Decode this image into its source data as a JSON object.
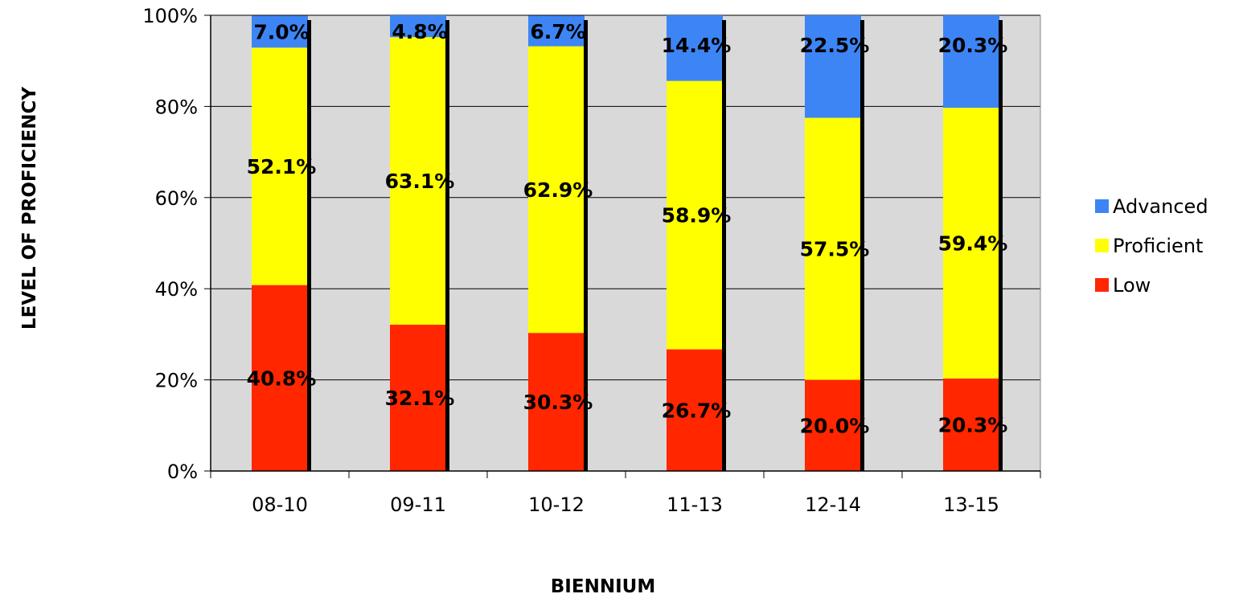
{
  "chart_data": {
    "type": "bar",
    "stacked": true,
    "normalized_percent": true,
    "categories": [
      "08-10",
      "09-11",
      "10-12",
      "11-13",
      "12-14",
      "13-15"
    ],
    "series": [
      {
        "name": "Low",
        "color": "#ff2600",
        "values": [
          40.8,
          32.1,
          30.3,
          26.7,
          20.0,
          20.3
        ],
        "labels": [
          "40.8%",
          "32.1%",
          "30.3%",
          "26.7%",
          "20.0%",
          "20.3%"
        ]
      },
      {
        "name": "Proficient",
        "color": "#ffff00",
        "values": [
          52.1,
          63.1,
          62.9,
          58.9,
          57.5,
          59.4
        ],
        "labels": [
          "52.1%",
          "63.1%",
          "62.9%",
          "58.9%",
          "57.5%",
          "59.4%"
        ]
      },
      {
        "name": "Advanced",
        "color": "#3d85f5",
        "values": [
          7.0,
          4.8,
          6.7,
          14.4,
          22.5,
          20.3
        ],
        "labels": [
          "7.0%",
          "4.8%",
          "6.7%",
          "14.4%",
          "22.5%",
          "20.3%"
        ]
      }
    ],
    "xlabel": "BIENNIUM",
    "ylabel": "LEVEL OF PROFICIENCY",
    "ylim": [
      0,
      100
    ],
    "yticks": [
      "0%",
      "20%",
      "40%",
      "60%",
      "80%",
      "100%"
    ],
    "grid": true,
    "plot_background": "#d9d9d9",
    "legend": {
      "placement": "right",
      "order": [
        "Advanced",
        "Proficient",
        "Low"
      ]
    }
  }
}
